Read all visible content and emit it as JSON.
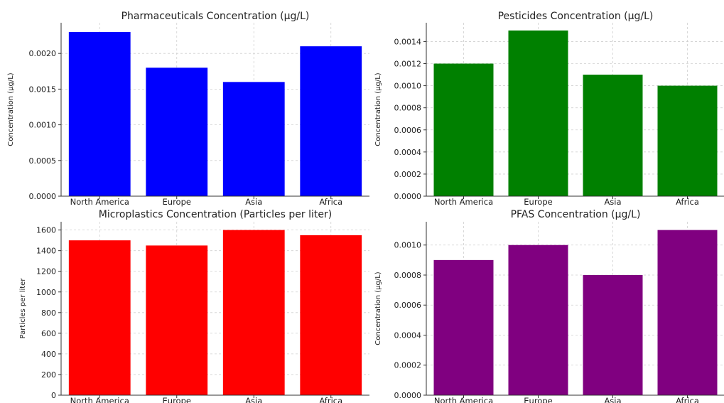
{
  "chart_data": [
    {
      "type": "bar",
      "title": "Pharmaceuticals Concentration (µg/L)",
      "ylabel": "Concentration (µg/L)",
      "xlabel": "",
      "categories": [
        "North America",
        "Europe",
        "Asia",
        "Africa"
      ],
      "values": [
        0.0023,
        0.0018,
        0.0016,
        0.0021
      ],
      "ylim": [
        0,
        0.00243
      ],
      "yticks": [
        0,
        0.0005,
        0.001,
        0.0015,
        0.002
      ],
      "ytick_labels": [
        "0.0000",
        "0.0005",
        "0.0010",
        "0.0015",
        "0.0020"
      ],
      "color": "#0000ff",
      "grid": true
    },
    {
      "type": "bar",
      "title": "Pesticides Concentration (µg/L)",
      "ylabel": "Concentration (µg/L)",
      "xlabel": "",
      "categories": [
        "North America",
        "Europe",
        "Asia",
        "Africa"
      ],
      "values": [
        0.0012,
        0.0015,
        0.0011,
        0.001
      ],
      "ylim": [
        0,
        0.00157
      ],
      "yticks": [
        0,
        0.0002,
        0.0004,
        0.0006,
        0.0008,
        0.001,
        0.0012,
        0.0014
      ],
      "ytick_labels": [
        "0.0000",
        "0.0002",
        "0.0004",
        "0.0006",
        "0.0008",
        "0.0010",
        "0.0012",
        "0.0014"
      ],
      "color": "#008000",
      "grid": true
    },
    {
      "type": "bar",
      "title": "Microplastics Concentration (Particles per liter)",
      "ylabel": "Particles per liter",
      "xlabel": "",
      "categories": [
        "North America",
        "Europe",
        "Asia",
        "Africa"
      ],
      "values": [
        1500,
        1450,
        1600,
        1550
      ],
      "ylim": [
        0,
        1680
      ],
      "yticks": [
        0,
        200,
        400,
        600,
        800,
        1000,
        1200,
        1400,
        1600
      ],
      "ytick_labels": [
        "0",
        "200",
        "400",
        "600",
        "800",
        "1000",
        "1200",
        "1400",
        "1600"
      ],
      "color": "#ff0000",
      "grid": true
    },
    {
      "type": "bar",
      "title": "PFAS Concentration (µg/L)",
      "ylabel": "Concentration (µg/L)",
      "xlabel": "",
      "categories": [
        "North America",
        "Europe",
        "Asia",
        "Africa"
      ],
      "values": [
        0.0009,
        0.001,
        0.0008,
        0.0011
      ],
      "ylim": [
        0,
        0.001155
      ],
      "yticks": [
        0,
        0.0002,
        0.0004,
        0.0006,
        0.0008,
        0.001
      ],
      "ytick_labels": [
        "0.0000",
        "0.0002",
        "0.0004",
        "0.0006",
        "0.0008",
        "0.0010"
      ],
      "color": "#800080",
      "grid": true
    }
  ]
}
